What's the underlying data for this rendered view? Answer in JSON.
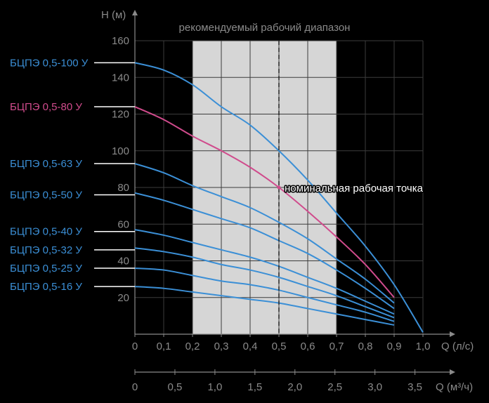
{
  "chart_data": {
    "type": "line",
    "range_label": "рекомендуемый рабочий диапазон",
    "recommended_range": [
      0.2,
      0.7
    ],
    "nominal_point": {
      "x": 0.5,
      "y": 80,
      "label": "номинальная рабочая точка"
    },
    "y_axis": {
      "label": "H (м)",
      "ylim": [
        0,
        160
      ],
      "ticks": [
        "20",
        "40",
        "60",
        "80",
        "100",
        "120",
        "140",
        "160"
      ]
    },
    "x_axis": {
      "label": "Q (л/с)",
      "xlim": [
        0,
        1.0
      ],
      "ticks": [
        "0",
        "0,1",
        "0,2",
        "0,3",
        "0,4",
        "0,5",
        "0,6",
        "0,7",
        "0,8",
        "0,9",
        "1,0"
      ]
    },
    "x2_axis": {
      "label": "Q (м³/ч)",
      "xlim": [
        0,
        3.6
      ],
      "ticks": [
        "0",
        "0,5",
        "1,0",
        "1,5",
        "2,0",
        "2,5",
        "3,0",
        "3,5"
      ]
    },
    "grid": true,
    "series": [
      {
        "name": "БЦПЭ 0,5-100 У",
        "color": "#3b8fd6",
        "label_y": 148,
        "x": [
          0,
          0.1,
          0.2,
          0.3,
          0.4,
          0.5,
          0.6,
          0.7,
          0.8,
          0.9,
          1.0
        ],
        "y": [
          148,
          144,
          136,
          124,
          114,
          100,
          84,
          66,
          48,
          27,
          1
        ]
      },
      {
        "name": "БЦПЭ 0,5-80 У",
        "color": "#d04b8c",
        "label_y": 124,
        "x": [
          0,
          0.1,
          0.2,
          0.3,
          0.4,
          0.5,
          0.6,
          0.7,
          0.8,
          0.9
        ],
        "y": [
          124,
          117,
          108,
          100,
          91,
          80,
          67,
          53,
          38,
          20
        ]
      },
      {
        "name": "БЦПЭ 0,5-63 У",
        "color": "#3b8fd6",
        "label_y": 93,
        "x": [
          0,
          0.1,
          0.2,
          0.3,
          0.4,
          0.5,
          0.6,
          0.7,
          0.8,
          0.9
        ],
        "y": [
          93,
          88,
          81,
          75,
          69,
          61,
          52,
          41,
          30,
          17
        ]
      },
      {
        "name": "БЦПЭ 0,5-50 У",
        "color": "#3b8fd6",
        "label_y": 76,
        "x": [
          0,
          0.1,
          0.2,
          0.3,
          0.4,
          0.5,
          0.6,
          0.7,
          0.8,
          0.9
        ],
        "y": [
          77,
          73,
          68,
          63,
          58,
          51,
          44,
          35,
          25,
          14
        ]
      },
      {
        "name": "БЦПЭ 0,5-40 У",
        "color": "#3b8fd6",
        "label_y": 56,
        "x": [
          0,
          0.1,
          0.2,
          0.3,
          0.4,
          0.5,
          0.6,
          0.7,
          0.8,
          0.9
        ],
        "y": [
          57,
          54,
          50,
          46,
          42,
          37,
          31,
          25,
          18,
          11
        ]
      },
      {
        "name": "БЦПЭ 0,5-32 У",
        "color": "#3b8fd6",
        "label_y": 46,
        "x": [
          0,
          0.1,
          0.2,
          0.3,
          0.4,
          0.5,
          0.6,
          0.7,
          0.8,
          0.9
        ],
        "y": [
          47,
          45,
          42,
          38,
          35,
          31,
          26,
          21,
          15,
          9
        ]
      },
      {
        "name": "БЦПЭ 0,5-25 У",
        "color": "#3b8fd6",
        "label_y": 36,
        "x": [
          0,
          0.1,
          0.2,
          0.3,
          0.4,
          0.5,
          0.6,
          0.7,
          0.8,
          0.9
        ],
        "y": [
          36,
          35,
          32,
          29,
          27,
          24,
          20,
          16,
          12,
          7
        ]
      },
      {
        "name": "БЦПЭ 0,5-16 У",
        "color": "#3b8fd6",
        "label_y": 26,
        "x": [
          0,
          0.1,
          0.2,
          0.3,
          0.4,
          0.5,
          0.6,
          0.7,
          0.8,
          0.9
        ],
        "y": [
          26,
          25,
          23,
          21,
          19,
          17,
          14,
          11,
          8,
          5
        ]
      }
    ]
  }
}
